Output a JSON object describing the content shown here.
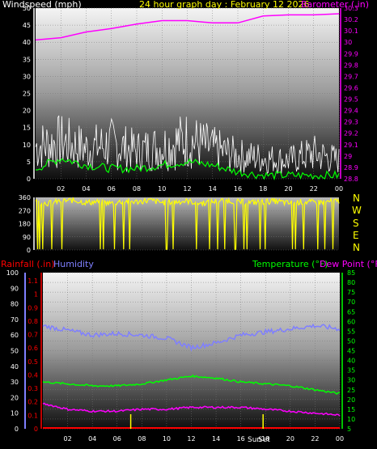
{
  "header": {
    "wind_label": "Windspeed (mph)",
    "date_label": "24 hour graph day : February 12 2026",
    "baro_label": "Barometer (.in)"
  },
  "compass": [
    "N",
    "W",
    "S",
    "E",
    "N"
  ],
  "bottom_header": {
    "rain_label": "Rainfall (.in)",
    "humidity_label": "Humidity",
    "temp_label": "Temperature (°F)",
    "dew_label": "Dew Point (°F)"
  },
  "sun_labels": {
    "sunrise": "Sun",
    "sunset": "Set"
  },
  "colors": {
    "wind": "#ffffff",
    "gust_avg": "#00ff00",
    "barometer": "#ff00ff",
    "direction": "#ffff00",
    "temperature": "#00ff00",
    "dewpoint": "#ff00ff",
    "humidity": "#7f7fff",
    "rainfall": "#ff0000",
    "date": "#ffff00"
  },
  "chart_data": [
    {
      "type": "area",
      "title": "24 hour graph day : February 12 2026",
      "x_ticks": [
        "02",
        "04",
        "06",
        "08",
        "10",
        "12",
        "14",
        "16",
        "18",
        "20",
        "22",
        "00"
      ],
      "ylabel": "Windspeed (mph)",
      "y_ticks": [
        0,
        5,
        10,
        15,
        20,
        25,
        30,
        35,
        40,
        45,
        50
      ],
      "ylim": [
        0,
        50
      ],
      "y2label": "Barometer (.in)",
      "y2_ticks": [
        "28.8",
        "28.9",
        "29",
        "29.1",
        "29.2",
        "29.3",
        "29.4",
        "29.5",
        "29.6",
        "29.7",
        "29.8",
        "29.9",
        "30",
        "30.1",
        "30.2",
        "30.3"
      ],
      "y2lim": [
        28.8,
        30.3
      ],
      "series": [
        {
          "name": "Barometer (.in)",
          "axis": "right",
          "x": [
            0,
            2,
            4,
            6,
            8,
            10,
            12,
            14,
            16,
            18,
            20,
            22,
            24
          ],
          "values": [
            30.02,
            30.04,
            30.09,
            30.12,
            30.16,
            30.19,
            30.19,
            30.17,
            30.17,
            30.23,
            30.24,
            30.24,
            30.25
          ]
        },
        {
          "axis": "left",
          "x": [
            0,
            2,
            4,
            6,
            8,
            10,
            12,
            14,
            16,
            18,
            20,
            22,
            24
          ],
          "values": [
            14,
            16,
            13,
            15,
            12,
            14,
            17,
            13,
            10,
            9,
            8,
            11,
            8
          ]
        },
        {
          "axis": "left",
          "x": [
            0,
            2,
            4,
            6,
            8,
            10,
            12,
            14,
            16,
            18,
            20,
            22,
            24
          ],
          "values": [
            3,
            6,
            4,
            3,
            3,
            4,
            5,
            4,
            2,
            1,
            1,
            1,
            1
          ]
        }
      ]
    },
    {
      "type": "scatter",
      "y_ticks": [
        0,
        90,
        180,
        270,
        360
      ],
      "ylim": [
        0,
        360
      ],
      "x": [
        0,
        1,
        2,
        3,
        4,
        5,
        6,
        7,
        8,
        9,
        10,
        11,
        12,
        13,
        14,
        15,
        16,
        17,
        18,
        19,
        20,
        21,
        22,
        23,
        24
      ],
      "values": [
        330,
        320,
        335,
        340,
        325,
        330,
        320,
        335,
        330,
        340,
        325,
        330,
        335,
        320,
        330,
        340,
        330,
        325,
        330,
        335,
        320,
        330,
        325,
        330,
        335
      ]
    },
    {
      "type": "line",
      "x_ticks": [
        "02",
        "04",
        "06",
        "08",
        "10",
        "12",
        "14",
        "16",
        "18",
        "20",
        "22",
        "00"
      ],
      "y_left_humidity_ticks": [
        0,
        10,
        20,
        30,
        40,
        50,
        60,
        70,
        80,
        90,
        100
      ],
      "y_left_rain_ticks": [
        "0",
        "0.1",
        "0.2",
        "0.3",
        "0.4",
        "0.5",
        "0.6",
        "0.7",
        "0.8",
        "0.9",
        "1",
        "1.1"
      ],
      "y_right_ticks": [
        5,
        10,
        15,
        20,
        25,
        30,
        35,
        40,
        45,
        50,
        55,
        60,
        65,
        70,
        75,
        80,
        85
      ],
      "ylim_right": [
        5,
        85
      ],
      "series": [
        {
          "name": "Temperature (°F)",
          "x": [
            0,
            2,
            4,
            6,
            8,
            10,
            12,
            14,
            16,
            18,
            20,
            22,
            24
          ],
          "values": [
            29,
            28,
            27,
            27,
            28,
            30,
            32,
            31,
            29,
            28,
            27,
            25,
            23
          ]
        },
        {
          "name": "Dew Point (°F)",
          "x": [
            0,
            2,
            4,
            6,
            8,
            10,
            12,
            14,
            16,
            18,
            20,
            22,
            24
          ],
          "values": [
            18,
            15,
            14,
            14,
            15,
            15,
            16,
            16,
            16,
            15,
            14,
            13,
            12
          ]
        },
        {
          "name": "Humidity",
          "x": [
            0,
            2,
            4,
            6,
            8,
            10,
            12,
            14,
            16,
            18,
            20,
            22,
            24
          ],
          "values": [
            66,
            63,
            60,
            61,
            60,
            58,
            52,
            55,
            60,
            62,
            64,
            66,
            64
          ]
        },
        {
          "name": "Rainfall (.in)",
          "x": [
            0,
            24
          ],
          "values": [
            0,
            0
          ]
        }
      ]
    }
  ]
}
